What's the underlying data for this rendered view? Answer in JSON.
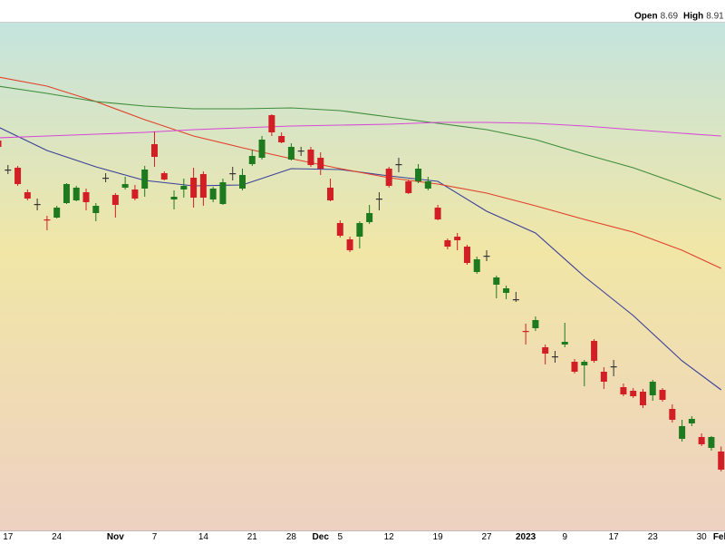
{
  "chart_data": {
    "type": "candlestick",
    "header_labels": [
      "Open",
      "High"
    ],
    "categories": [
      null,
      "17",
      null,
      null,
      null,
      null,
      "24",
      null,
      null,
      null,
      null,
      null,
      "Nov",
      null,
      null,
      null,
      "7",
      null,
      null,
      null,
      null,
      "14",
      null,
      null,
      null,
      null,
      "21",
      null,
      null,
      null,
      "28",
      null,
      null,
      "Dec",
      null,
      "5",
      null,
      null,
      null,
      null,
      "12",
      null,
      null,
      null,
      null,
      "19",
      null,
      null,
      null,
      null,
      "27",
      null,
      null,
      null,
      "2023",
      null,
      null,
      null,
      "9",
      null,
      null,
      null,
      null,
      "17",
      null,
      null,
      null,
      "23",
      null,
      null,
      null,
      null,
      "30",
      null,
      "Feb"
    ],
    "open": [
      22.41,
      21.13,
      21.21,
      20.13,
      19.61,
      18.93,
      19.01,
      19.65,
      19.77,
      20.13,
      19.21,
      20.77,
      20.01,
      20.33,
      20.25,
      20.29,
      22.25,
      20.97,
      19.81,
      20.25,
      20.77,
      20.93,
      19.81,
      19.61,
      20.97,
      20.29,
      21.37,
      21.65,
      23.53,
      22.61,
      21.57,
      21.97,
      22.01,
      21.65,
      20.33,
      18.77,
      18.05,
      18.17,
      18.81,
      19.85,
      21.17,
      21.37,
      20.61,
      20.61,
      20.29,
      19.45,
      18.01,
      18.17,
      17.73,
      16.61,
      17.33,
      16.05,
      15.69,
      15.41,
      14.01,
      14.13,
      13.29,
      12.89,
      13.41,
      12.65,
      12.49,
      13.57,
      12.21,
      12.45,
      11.53,
      11.37,
      11.33,
      11.17,
      11.41,
      10.57,
      9.25,
      9.93,
      9.33,
      8.85,
      8.69
    ],
    "high": [
      22.49,
      21.33,
      21.29,
      20.25,
      19.85,
      19.09,
      19.53,
      20.53,
      20.41,
      20.29,
      19.65,
      20.97,
      20.09,
      20.81,
      20.45,
      21.29,
      22.81,
      21.05,
      20.21,
      20.73,
      21.21,
      21.05,
      20.37,
      20.73,
      21.25,
      21.17,
      22.01,
      22.61,
      23.57,
      22.77,
      22.29,
      22.13,
      22.13,
      21.89,
      20.73,
      18.89,
      18.17,
      18.85,
      19.57,
      20.13,
      21.25,
      21.65,
      20.69,
      21.37,
      20.81,
      19.57,
      18.09,
      18.33,
      17.81,
      17.29,
      17.57,
      16.45,
      16.01,
      15.73,
      14.33,
      14.65,
      13.41,
      13.13,
      14.37,
      12.77,
      12.73,
      13.65,
      12.41,
      12.73,
      11.69,
      11.49,
      11.45,
      11.85,
      11.49,
      10.77,
      10.09,
      10.25,
      9.49,
      9.37,
      8.91
    ],
    "low": [
      22.09,
      20.93,
      20.41,
      19.77,
      19.33,
      18.45,
      18.97,
      19.61,
      19.73,
      19.33,
      18.85,
      20.57,
      19.01,
      20.25,
      19.77,
      19.93,
      21.25,
      20.65,
      19.37,
      19.89,
      19.45,
      19.53,
      19.69,
      19.57,
      20.65,
      20.21,
      21.29,
      21.57,
      22.61,
      22.29,
      21.53,
      21.73,
      21.25,
      20.89,
      19.73,
      18.13,
      17.49,
      17.65,
      18.73,
      19.33,
      20.33,
      21.01,
      20.05,
      20.53,
      20.21,
      18.89,
      17.61,
      17.57,
      16.93,
      16.53,
      17.09,
      15.45,
      15.41,
      15.29,
      13.41,
      14.01,
      12.53,
      12.61,
      13.29,
      12.13,
      11.57,
      12.61,
      11.45,
      12.01,
      11.13,
      11.05,
      10.61,
      10.93,
      10.89,
      9.97,
      9.13,
      9.81,
      8.93,
      8.73,
      7.81
    ],
    "close": [
      22.13,
      21.13,
      20.49,
      19.85,
      19.61,
      18.89,
      19.45,
      20.49,
      20.33,
      19.69,
      19.53,
      20.77,
      19.57,
      20.49,
      19.85,
      21.13,
      21.69,
      20.69,
      19.93,
      20.41,
      19.89,
      19.89,
      20.29,
      20.57,
      20.97,
      20.89,
      21.73,
      22.45,
      22.77,
      22.33,
      22.13,
      21.97,
      21.33,
      21.17,
      19.77,
      18.21,
      17.57,
      18.77,
      19.21,
      19.85,
      20.41,
      21.37,
      20.09,
      21.17,
      20.61,
      18.93,
      17.73,
      18.01,
      17.01,
      17.17,
      17.33,
      16.37,
      15.89,
      15.41,
      13.97,
      14.49,
      13.01,
      12.89,
      13.53,
      12.21,
      12.65,
      12.69,
      11.77,
      12.45,
      11.21,
      11.13,
      10.73,
      11.77,
      10.97,
      10.09,
      9.81,
      10.13,
      9.01,
      9.33,
      7.89
    ],
    "up_color": "#1e7a1e",
    "down_color": "#d21f26",
    "ylim": [
      5.21,
      27.61
    ],
    "overlays": [
      {
        "color": "#3a3f9a",
        "x": [
          0,
          5,
          10,
          15,
          20,
          25,
          30,
          35,
          40,
          45,
          50,
          55,
          60,
          65,
          70,
          74
        ],
        "values": [
          23.01,
          21.97,
          21.25,
          20.65,
          20.41,
          20.45,
          21.17,
          21.13,
          20.85,
          20.61,
          19.29,
          18.33,
          16.41,
          14.69,
          12.69,
          11.41
        ]
      },
      {
        "color": "#e0402a",
        "x": [
          0,
          5,
          10,
          15,
          20,
          25,
          30,
          35,
          40,
          45,
          50,
          55,
          60,
          65,
          70,
          74
        ],
        "values": [
          25.21,
          24.81,
          24.13,
          23.33,
          22.61,
          22.09,
          21.61,
          21.17,
          20.77,
          20.49,
          20.09,
          19.53,
          18.93,
          18.37,
          17.57,
          16.77
        ]
      },
      {
        "color": "#3e8c3a",
        "x": [
          0,
          5,
          10,
          15,
          20,
          25,
          30,
          35,
          40,
          45,
          50,
          55,
          60,
          65,
          70,
          74
        ],
        "values": [
          24.81,
          24.49,
          24.13,
          23.93,
          23.81,
          23.81,
          23.85,
          23.73,
          23.45,
          23.17,
          22.89,
          22.45,
          21.81,
          21.21,
          20.45,
          19.81
        ]
      },
      {
        "color": "#d64ad6",
        "x": [
          0,
          5,
          10,
          15,
          20,
          25,
          30,
          35,
          40,
          45,
          50,
          55,
          60,
          65,
          70,
          74
        ],
        "values": [
          22.53,
          22.61,
          22.69,
          22.77,
          22.89,
          22.97,
          23.05,
          23.09,
          23.13,
          23.21,
          23.21,
          23.17,
          23.05,
          22.89,
          22.73,
          22.61
        ]
      }
    ]
  }
}
